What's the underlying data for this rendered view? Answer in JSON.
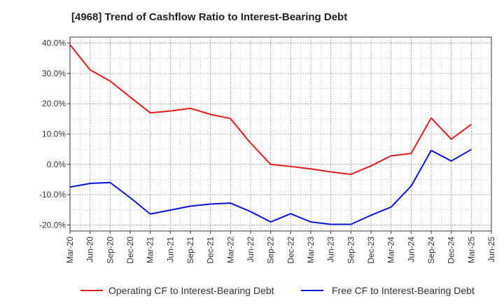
{
  "chart_data": {
    "type": "line",
    "title": "[4968]  Trend of Cashflow Ratio to Interest-Bearing Debt",
    "xlabel": "",
    "ylabel": "",
    "ylim": [
      -22,
      42
    ],
    "y_ticks": [
      40,
      30,
      20,
      10,
      0,
      -10,
      -20
    ],
    "y_tick_labels": [
      "40.0%",
      "30.0%",
      "20.0%",
      "10.0%",
      "0.0%",
      "-10.0%",
      "-20.0%"
    ],
    "categories": [
      "Mar-20",
      "Jun-20",
      "Sep-20",
      "Dec-20",
      "Mar-21",
      "Jun-21",
      "Sep-21",
      "Dec-21",
      "Mar-22",
      "Jun-22",
      "Sep-22",
      "Dec-22",
      "Mar-23",
      "Jun-23",
      "Sep-23",
      "Dec-23",
      "Mar-24",
      "Jun-24",
      "Sep-24",
      "Dec-24",
      "Mar-25",
      "Jun-25"
    ],
    "grid": true,
    "legend_position": "bottom",
    "series": [
      {
        "name": "Operating CF to Interest-Bearing Debt",
        "color": "#e31a1c",
        "values": [
          39.5,
          31.2,
          27.5,
          22.2,
          17.0,
          17.6,
          18.5,
          16.5,
          15.1,
          7.0,
          0.0,
          -0.7,
          -1.5,
          -2.5,
          -3.3,
          -0.5,
          2.8,
          3.6,
          15.3,
          8.3,
          13.2,
          null
        ]
      },
      {
        "name": "Free CF to Interest-Bearing Debt",
        "color": "#0a14d8",
        "values": [
          -7.5,
          -6.3,
          -6.0,
          -11.0,
          -16.4,
          -15.1,
          -13.8,
          -13.1,
          -12.8,
          -15.6,
          -19.0,
          -16.3,
          -19.0,
          -19.8,
          -19.8,
          -16.8,
          -14.1,
          -7.2,
          4.6,
          1.1,
          4.9,
          null
        ]
      }
    ]
  }
}
